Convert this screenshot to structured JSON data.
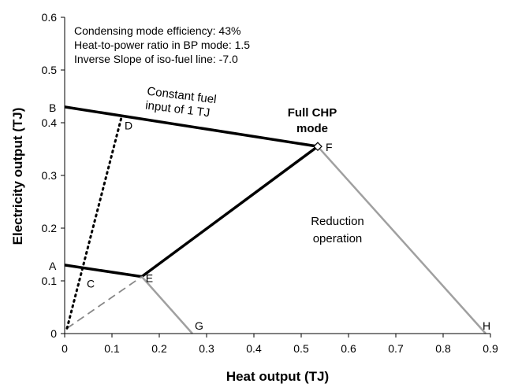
{
  "chart_data": {
    "type": "line",
    "xlabel": "Heat output (TJ)",
    "ylabel": "Electricity output (TJ)",
    "xlim": [
      0,
      0.9
    ],
    "ylim": [
      0,
      0.6
    ],
    "xticks": [
      "0",
      "0.1",
      "0.2",
      "0.3",
      "0.4",
      "0.5",
      "0.6",
      "0.7",
      "0.8",
      "0.9"
    ],
    "yticks": [
      "0",
      "0.1",
      "0.2",
      "0.3",
      "0.4",
      "0.5",
      "0.6"
    ],
    "info_lines": [
      "Condensing mode efficiency: 43%",
      "Heat-to-power ratio in BP mode: 1.5",
      "Inverse Slope of iso-fuel line: -7.0"
    ],
    "points": {
      "A": [
        0.0,
        0.13
      ],
      "B": [
        0.0,
        0.43
      ],
      "C": [
        0.04,
        0.11
      ],
      "D": [
        0.12,
        0.41
      ],
      "E": [
        0.163,
        0.108
      ],
      "F": [
        0.535,
        0.355
      ],
      "G": [
        0.27,
        0.0
      ],
      "H": [
        0.89,
        0.0
      ]
    },
    "segments": [
      {
        "from": "B",
        "to": "F",
        "color": "#000000",
        "style": "solid"
      },
      {
        "from": "A",
        "to": "E",
        "color": "#000000",
        "style": "solid"
      },
      {
        "from": "E",
        "to": "F",
        "color": "#000000",
        "style": "solid"
      },
      {
        "from": "E",
        "to": "G",
        "color": "#a0a0a0",
        "style": "solid"
      },
      {
        "from": "F",
        "to": "H",
        "color": "#a0a0a0",
        "style": "solid"
      },
      {
        "from": "O",
        "to": "E",
        "color": "#888888",
        "style": "dashed"
      },
      {
        "from": "O",
        "to": "D",
        "color": "#000000",
        "style": "dotted"
      }
    ],
    "origin_point": [
      0.005,
      0.01
    ],
    "annotations": {
      "constant_fuel": [
        "Constant fuel",
        "input of 1 TJ"
      ],
      "full_chp": [
        "Full CHP",
        "mode"
      ],
      "reduction": [
        "Reduction",
        "operation"
      ]
    }
  }
}
